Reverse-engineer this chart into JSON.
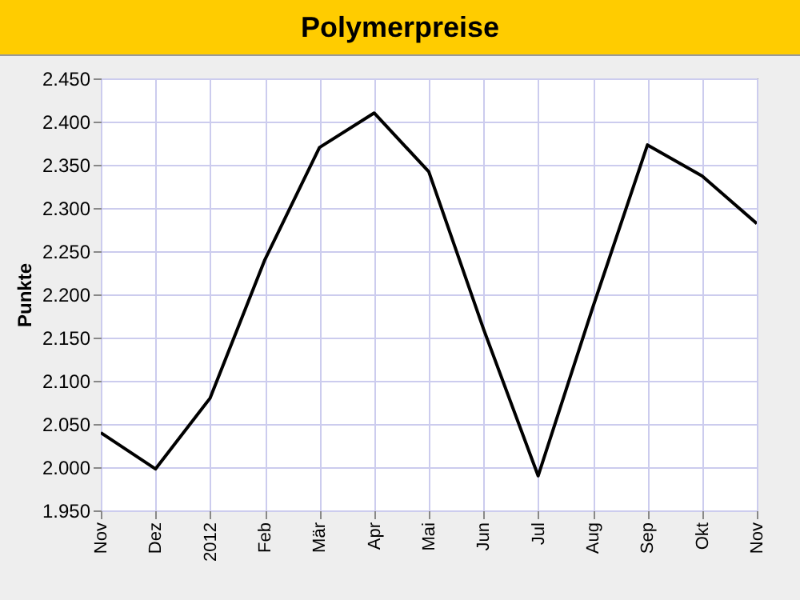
{
  "chart_data": {
    "type": "line",
    "title": "Polymerpreise",
    "ylabel": "Punkte",
    "categories": [
      "Nov",
      "Dez",
      "2012",
      "Feb",
      "Mär",
      "Apr",
      "Mai",
      "Jun",
      "Jul",
      "Aug",
      "Sep",
      "Okt",
      "Nov"
    ],
    "series": [
      {
        "color": "#000000",
        "values": [
          2040,
          1998,
          2080,
          2240,
          2370,
          2410,
          2342,
          2160,
          1990,
          2185,
          2373,
          2337,
          2282
        ]
      }
    ],
    "ylim": [
      1950,
      2450
    ],
    "yticks": [
      {
        "value": 1950,
        "label": "1.950"
      },
      {
        "value": 2000,
        "label": "2.000"
      },
      {
        "value": 2050,
        "label": "2.050"
      },
      {
        "value": 2100,
        "label": "2.100"
      },
      {
        "value": 2150,
        "label": "2.150"
      },
      {
        "value": 2200,
        "label": "2.200"
      },
      {
        "value": 2250,
        "label": "2.250"
      },
      {
        "value": 2300,
        "label": "2.300"
      },
      {
        "value": 2350,
        "label": "2.350"
      },
      {
        "value": 2400,
        "label": "2.400"
      },
      {
        "value": 2450,
        "label": "2.450"
      }
    ],
    "grid": true,
    "marker": "none",
    "line_style": "solid"
  }
}
